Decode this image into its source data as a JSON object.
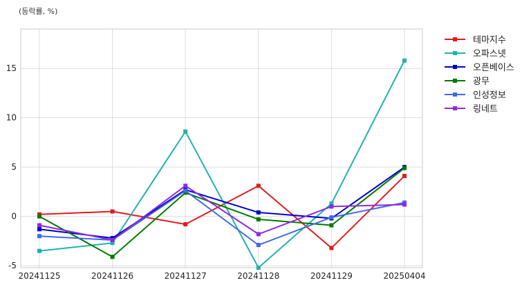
{
  "chart_data": {
    "type": "line",
    "unit_label": "(등락률, %)",
    "categories": [
      "20241125",
      "20241126",
      "20241127",
      "20241128",
      "20241129",
      "20250404"
    ],
    "ylim": [
      -5.2,
      19
    ],
    "yticks": [
      -5,
      0,
      5,
      10,
      15
    ],
    "grid": true,
    "legend_position": "right-top, outside",
    "series": [
      {
        "name": "테마지수",
        "color": "#e31a1c",
        "values": [
          0.2,
          0.5,
          -0.8,
          3.1,
          -3.2,
          4.1
        ]
      },
      {
        "name": "오파스넷",
        "color": "#20b2aa",
        "values": [
          -3.5,
          -2.7,
          8.6,
          -5.2,
          1.3,
          15.8
        ]
      },
      {
        "name": "오픈베이스",
        "color": "#0000cc",
        "values": [
          -1.3,
          -2.2,
          2.7,
          0.4,
          -0.2,
          5.0
        ]
      },
      {
        "name": "광무",
        "color": "#007a00",
        "values": [
          0.0,
          -4.1,
          2.4,
          -0.3,
          -0.9,
          4.9
        ]
      },
      {
        "name": "인성정보",
        "color": "#4169e1",
        "values": [
          -2.0,
          -2.4,
          2.6,
          -2.9,
          -0.1,
          1.4
        ]
      },
      {
        "name": "링네트",
        "color": "#8a2be2",
        "values": [
          -0.9,
          -2.4,
          3.1,
          -1.8,
          1.0,
          1.2
        ]
      }
    ]
  }
}
